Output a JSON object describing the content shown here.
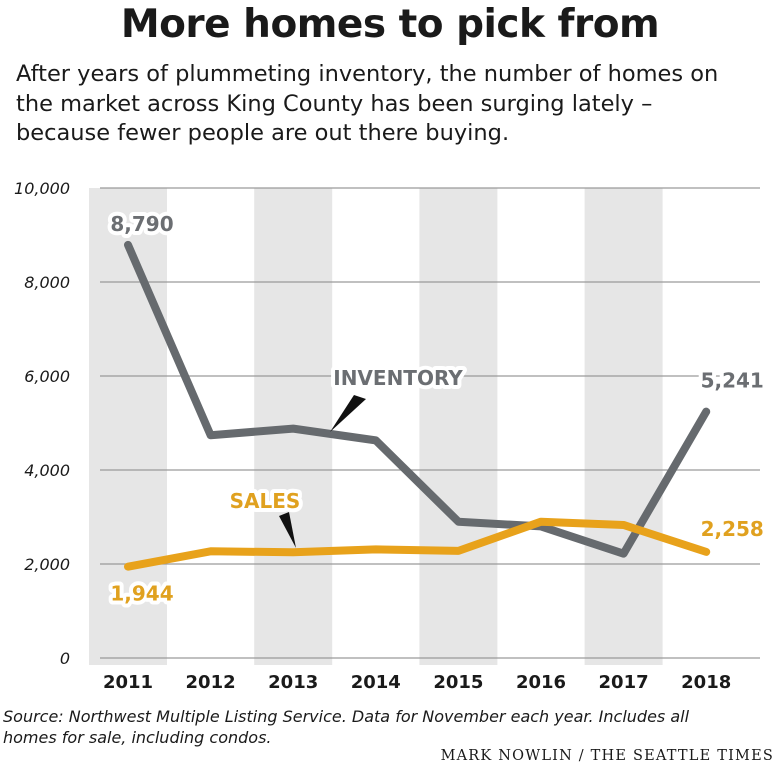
{
  "header": {
    "title": "More homes to pick from",
    "subtitle_lines": [
      "After years of plummeting inventory, the number of homes on",
      "the market across King County has been surging lately –",
      "because fewer people are out there buying."
    ]
  },
  "footer": {
    "source_lines": [
      "Source: Northwest Multiple Listing Service. Data for November each year. Includes all",
      "homes for sale, including condos."
    ],
    "credit": "MARK NOWLIN / THE SEATTLE TIMES"
  },
  "chart_data": {
    "type": "line",
    "title": "More homes to pick from",
    "xlabel": "",
    "ylabel": "",
    "categories": [
      "2011",
      "2012",
      "2013",
      "2014",
      "2015",
      "2016",
      "2017",
      "2018"
    ],
    "y_ticks": [
      "0",
      "2,000",
      "4,000",
      "6,000",
      "8,000",
      "10,000"
    ],
    "y_tick_values": [
      0,
      2000,
      4000,
      6000,
      8000,
      10000
    ],
    "ylim": [
      0,
      10000
    ],
    "grid": true,
    "series": [
      {
        "name": "INVENTORY",
        "color": "#666a6e",
        "values": [
          8790,
          4740,
          4880,
          4630,
          2900,
          2800,
          2220,
          5241
        ],
        "labels": [
          {
            "index": 0,
            "text": "8,790"
          },
          {
            "index": 7,
            "text": "5,241"
          }
        ]
      },
      {
        "name": "SALES",
        "color": "#e8a21b",
        "values": [
          1944,
          2270,
          2250,
          2310,
          2280,
          2900,
          2830,
          2258
        ],
        "labels": [
          {
            "index": 0,
            "text": "1,944"
          },
          {
            "index": 7,
            "text": "2,258"
          }
        ]
      }
    ],
    "colors": {
      "band": "#e6e6e6",
      "grid": "#9a9a9a",
      "inventory_label": "#6b6e72",
      "sales_label": "#e0a11f"
    }
  }
}
